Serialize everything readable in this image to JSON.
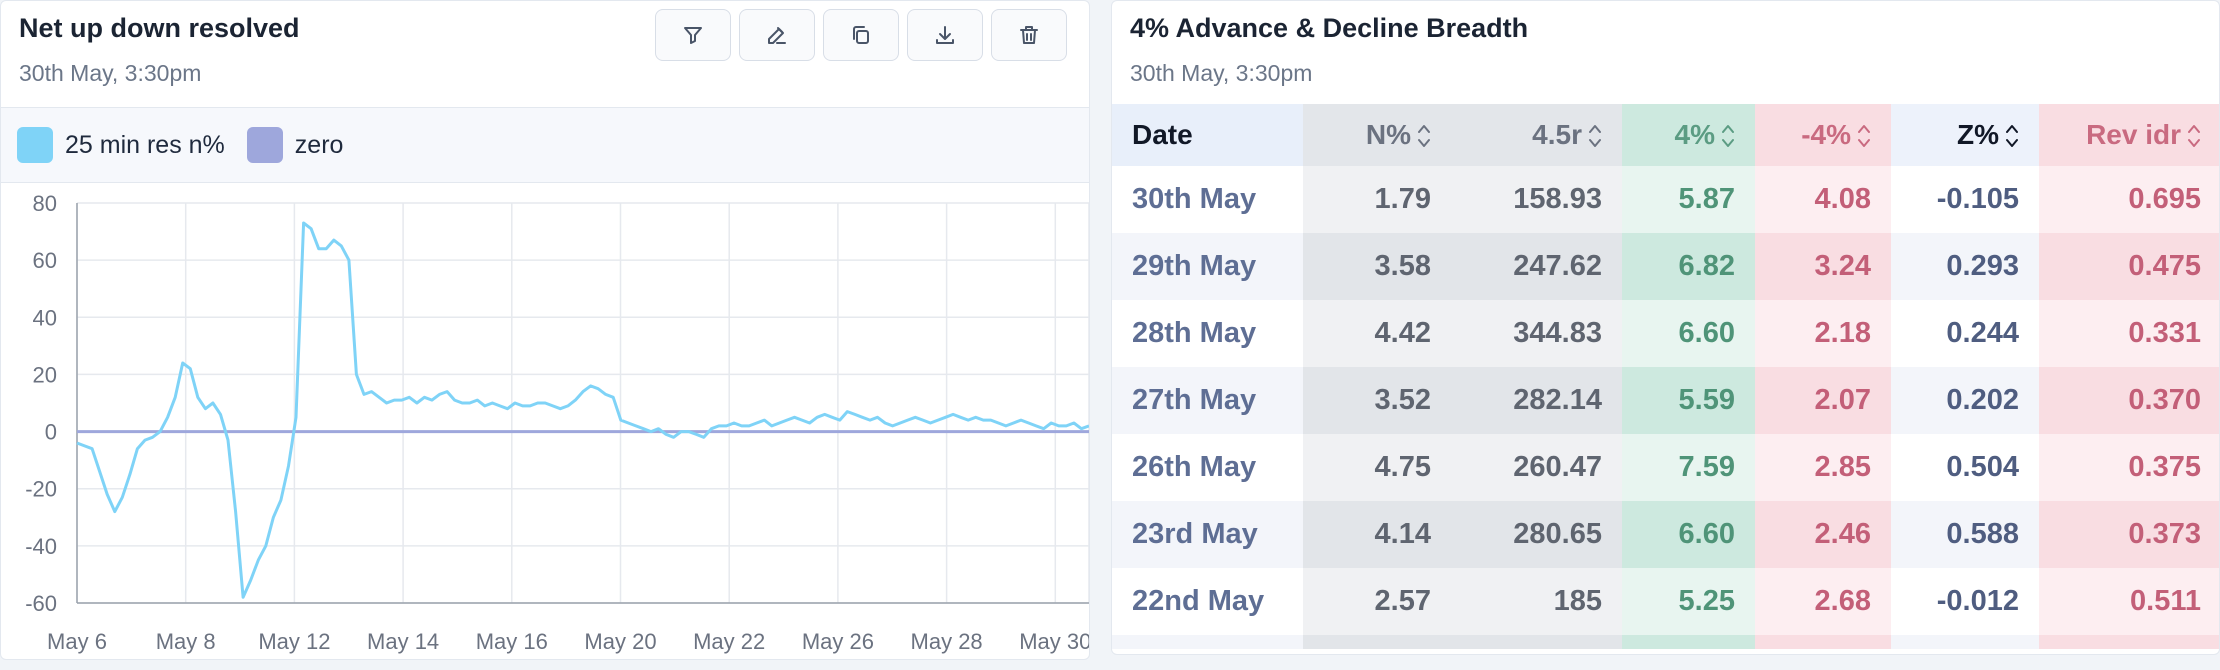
{
  "left_panel": {
    "title": "Net up down resolved",
    "subtitle": "30th May, 3:30pm",
    "toolbar": [
      {
        "name": "filter-button",
        "icon": "filter-icon"
      },
      {
        "name": "edit-button",
        "icon": "edit-icon"
      },
      {
        "name": "copy-button",
        "icon": "copy-icon"
      },
      {
        "name": "download-button",
        "icon": "download-icon"
      },
      {
        "name": "delete-button",
        "icon": "trash-icon"
      }
    ],
    "legend": [
      {
        "label": "25 min res n%",
        "color": "#7fd3f7"
      },
      {
        "label": "zero",
        "color": "#9ea7dc"
      }
    ]
  },
  "chart_data": {
    "type": "line",
    "title": "",
    "xlabel": "",
    "ylabel": "",
    "ylim": [
      -60,
      80
    ],
    "yticks": [
      80,
      60,
      40,
      20,
      0,
      -20,
      -40,
      -60
    ],
    "xticks": [
      "May 6",
      "May 8",
      "May 12",
      "May 14",
      "May 16",
      "May 20",
      "May 22",
      "May 26",
      "May 28",
      "May 30"
    ],
    "grid": true,
    "series": [
      {
        "name": "25 min res n%",
        "color": "#7fd3f7",
        "values": [
          -4,
          -5,
          -6,
          -14,
          -22,
          -28,
          -23,
          -15,
          -6,
          -3,
          -2,
          0,
          5,
          12,
          24,
          22,
          12,
          8,
          10,
          6,
          -3,
          -28,
          -58,
          -52,
          -45,
          -40,
          -30,
          -24,
          -12,
          5,
          73,
          71,
          64,
          64,
          67,
          65,
          60,
          20,
          13,
          14,
          12,
          10,
          11,
          11,
          12,
          10,
          12,
          11,
          13,
          14,
          11,
          10,
          10,
          11,
          9,
          10,
          9,
          8,
          10,
          9,
          9,
          10,
          10,
          9,
          8,
          9,
          11,
          14,
          16,
          15,
          13,
          12,
          4,
          3,
          2,
          1,
          0,
          1,
          -1,
          -2,
          0,
          0,
          -1,
          -2,
          1,
          2,
          2,
          3,
          2,
          2,
          3,
          4,
          2,
          3,
          4,
          5,
          4,
          3,
          5,
          6,
          5,
          4,
          7,
          6,
          5,
          4,
          5,
          3,
          2,
          3,
          4,
          5,
          4,
          3,
          4,
          5,
          6,
          5,
          4,
          5,
          4,
          4,
          3,
          2,
          3,
          4,
          3,
          2,
          1,
          3,
          2,
          2,
          3,
          1,
          2
        ]
      },
      {
        "name": "zero",
        "color": "#9ea7dc",
        "values": "constant 0"
      }
    ]
  },
  "right_panel": {
    "title": "4% Advance & Decline Breadth",
    "subtitle": "30th May, 3:30pm",
    "columns": [
      "Date",
      "N%",
      "4.5r",
      "4%",
      "-4%",
      "Z%",
      "Rev idr"
    ],
    "rows": [
      [
        "30th May",
        "1.79",
        "158.93",
        "5.87",
        "4.08",
        "-0.105",
        "0.695"
      ],
      [
        "29th May",
        "3.58",
        "247.62",
        "6.82",
        "3.24",
        "0.293",
        "0.475"
      ],
      [
        "28th May",
        "4.42",
        "344.83",
        "6.60",
        "2.18",
        "0.244",
        "0.331"
      ],
      [
        "27th May",
        "3.52",
        "282.14",
        "5.59",
        "2.07",
        "0.202",
        "0.370"
      ],
      [
        "26th May",
        "4.75",
        "260.47",
        "7.59",
        "2.85",
        "0.504",
        "0.375"
      ],
      [
        "23rd May",
        "4.14",
        "280.65",
        "6.60",
        "2.46",
        "0.588",
        "0.373"
      ],
      [
        "22nd May",
        "2.57",
        "185",
        "5.25",
        "2.68",
        "-0.012",
        "0.511"
      ]
    ]
  }
}
